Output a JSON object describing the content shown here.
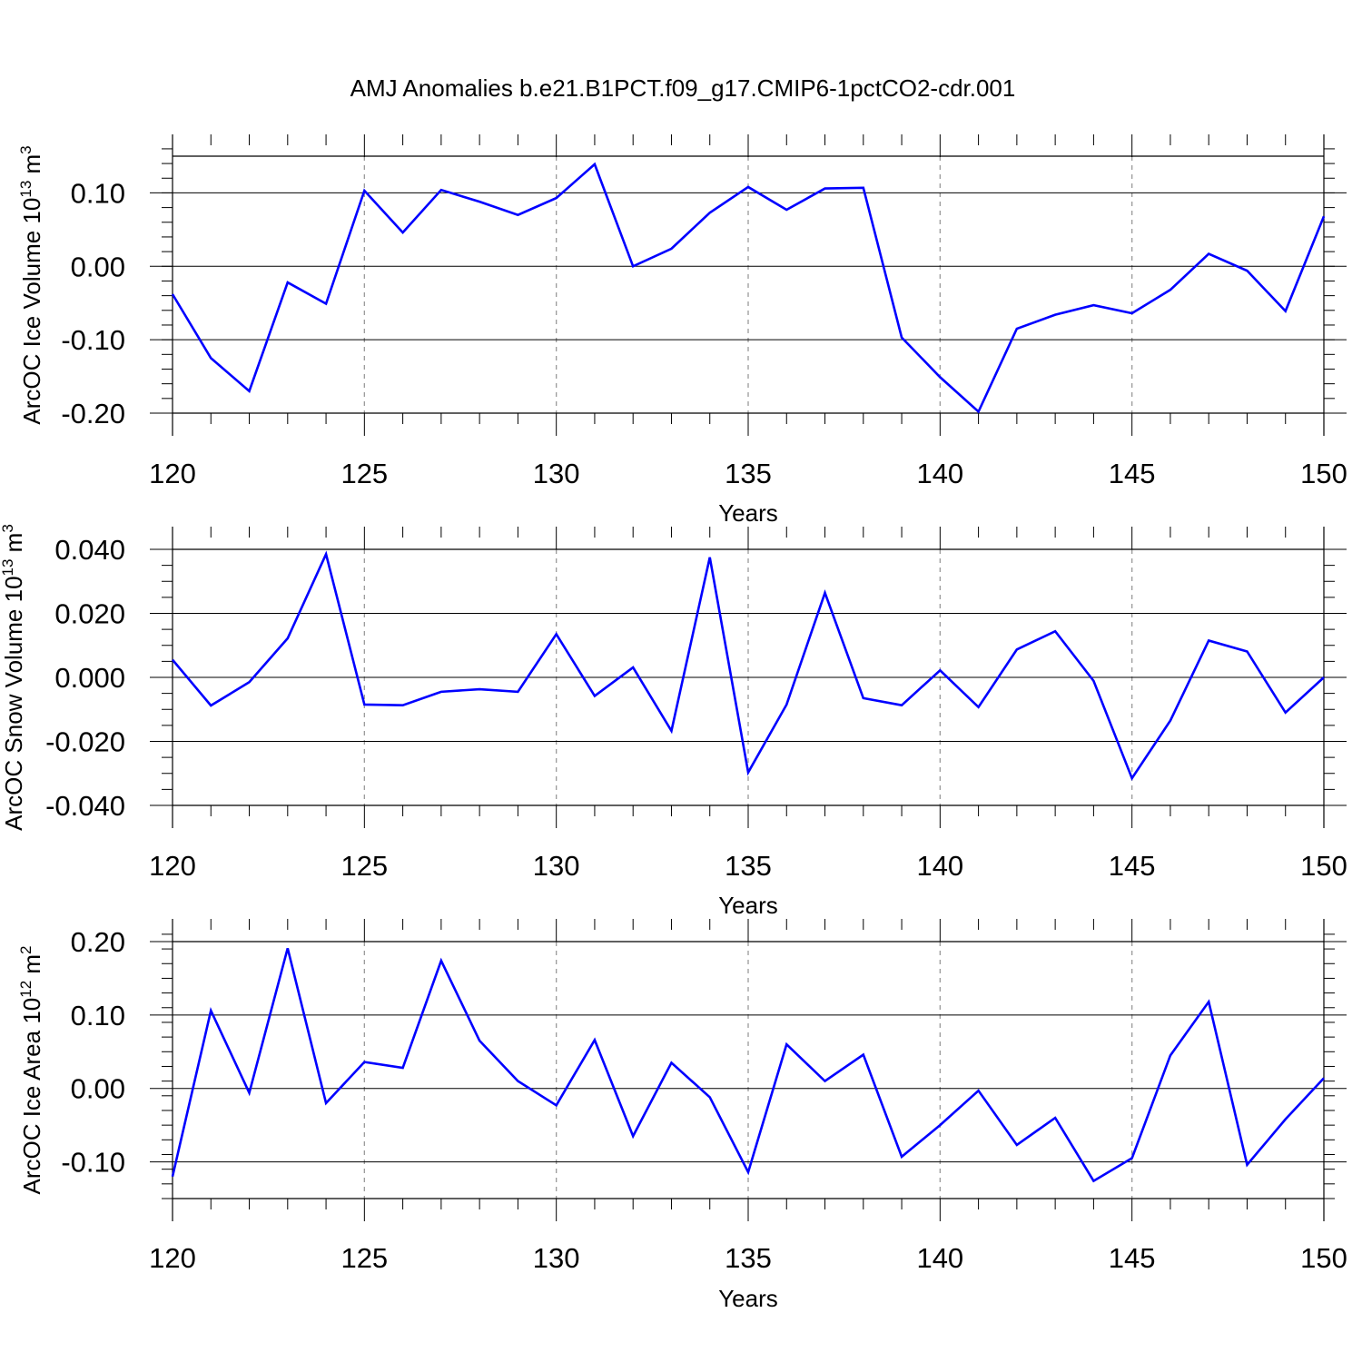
{
  "title": "AMJ Anomalies b.e21.B1PCT.f09_g17.CMIP6-1pctCO2-cdr.001",
  "colors": {
    "line": "#0000ff",
    "grid": "#9a9a9a",
    "axis": "#000000"
  },
  "chart_data": [
    {
      "type": "line",
      "xlabel": "Years",
      "ylabel": {
        "prefix": "ArcOC Ice Volume 10",
        "exp": "13",
        "unit": " m",
        "unit_exp": "3"
      },
      "xlim": [
        120,
        150
      ],
      "ylim": [
        -0.2,
        0.15
      ],
      "xticks": [
        120,
        125,
        130,
        135,
        140,
        145,
        150
      ],
      "xtick_labels": [
        "120",
        "125",
        "130",
        "135",
        "140",
        "145",
        "150"
      ],
      "yticks": [
        -0.2,
        -0.1,
        0.0,
        0.1
      ],
      "ytick_labels": [
        "-0.20",
        "-0.10",
        "0.00",
        "0.10"
      ],
      "yminor_step": 0.02,
      "grid": "vertical dashed at major x ticks",
      "x": [
        120,
        121,
        122,
        123,
        124,
        125,
        126,
        127,
        128,
        129,
        130,
        131,
        132,
        133,
        134,
        135,
        136,
        137,
        138,
        139,
        140,
        141,
        142,
        143,
        144,
        145,
        146,
        147,
        148,
        149,
        150
      ],
      "series": [
        {
          "values": [
            -0.038,
            -0.125,
            -0.17,
            -0.022,
            -0.051,
            0.103,
            0.046,
            0.104,
            0.088,
            0.07,
            0.093,
            0.139,
            0.0,
            0.024,
            0.073,
            0.108,
            0.077,
            0.106,
            0.107,
            -0.097,
            -0.151,
            -0.198,
            -0.085,
            -0.066,
            -0.053,
            -0.064,
            -0.032,
            0.017,
            -0.006,
            -0.061,
            0.068
          ]
        }
      ]
    },
    {
      "type": "line",
      "xlabel": "Years",
      "ylabel": {
        "prefix": "ArcOC Snow Volume 10",
        "exp": "13",
        "unit": " m",
        "unit_exp": "3"
      },
      "xlim": [
        120,
        150
      ],
      "ylim": [
        -0.04,
        0.04
      ],
      "xticks": [
        120,
        125,
        130,
        135,
        140,
        145,
        150
      ],
      "xtick_labels": [
        "120",
        "125",
        "130",
        "135",
        "140",
        "145",
        "150"
      ],
      "yticks": [
        -0.04,
        -0.02,
        0.0,
        0.02,
        0.04
      ],
      "ytick_labels": [
        "-0.040",
        "-0.020",
        "0.000",
        "0.020",
        "0.040"
      ],
      "yminor_step": 0.005,
      "grid": "vertical dashed at major x ticks",
      "x": [
        120,
        121,
        122,
        123,
        124,
        125,
        126,
        127,
        128,
        129,
        130,
        131,
        132,
        133,
        134,
        135,
        136,
        137,
        138,
        139,
        140,
        141,
        142,
        143,
        144,
        145,
        146,
        147,
        148,
        149,
        150
      ],
      "series": [
        {
          "values": [
            0.0055,
            -0.0088,
            -0.0015,
            0.0122,
            0.0385,
            -0.0085,
            -0.0087,
            -0.0045,
            -0.0037,
            -0.0045,
            0.0135,
            -0.0058,
            0.0031,
            -0.0167,
            0.0375,
            -0.0297,
            -0.0085,
            0.0264,
            -0.0065,
            -0.0087,
            0.0022,
            -0.0093,
            0.0087,
            0.0144,
            -0.0011,
            -0.0315,
            -0.0135,
            0.0115,
            0.0081,
            -0.011,
            0.0
          ]
        }
      ]
    },
    {
      "type": "line",
      "xlabel": "Years",
      "ylabel": {
        "prefix": "ArcOC Ice Area 10",
        "exp": "12",
        "unit": " m",
        "unit_exp": "2"
      },
      "xlim": [
        120,
        150
      ],
      "ylim": [
        -0.15,
        0.2
      ],
      "xticks": [
        120,
        125,
        130,
        135,
        140,
        145,
        150
      ],
      "xtick_labels": [
        "120",
        "125",
        "130",
        "135",
        "140",
        "145",
        "150"
      ],
      "yticks": [
        -0.1,
        0.0,
        0.1,
        0.2
      ],
      "ytick_labels": [
        "-0.10",
        "0.00",
        "0.10",
        "0.20"
      ],
      "yminor_step": 0.02,
      "grid": "vertical dashed at major x ticks",
      "x": [
        120,
        121,
        122,
        123,
        124,
        125,
        126,
        127,
        128,
        129,
        130,
        131,
        132,
        133,
        134,
        135,
        136,
        137,
        138,
        139,
        140,
        141,
        142,
        143,
        144,
        145,
        146,
        147,
        148,
        149,
        150
      ],
      "series": [
        {
          "values": [
            -0.12,
            0.106,
            -0.006,
            0.191,
            -0.02,
            0.036,
            0.028,
            0.174,
            0.065,
            0.01,
            -0.023,
            0.066,
            -0.065,
            0.035,
            -0.012,
            -0.114,
            0.06,
            0.01,
            0.046,
            -0.093,
            -0.05,
            -0.003,
            -0.077,
            -0.04,
            -0.126,
            -0.095,
            0.045,
            0.118,
            -0.104,
            -0.042,
            0.014
          ]
        }
      ]
    }
  ]
}
